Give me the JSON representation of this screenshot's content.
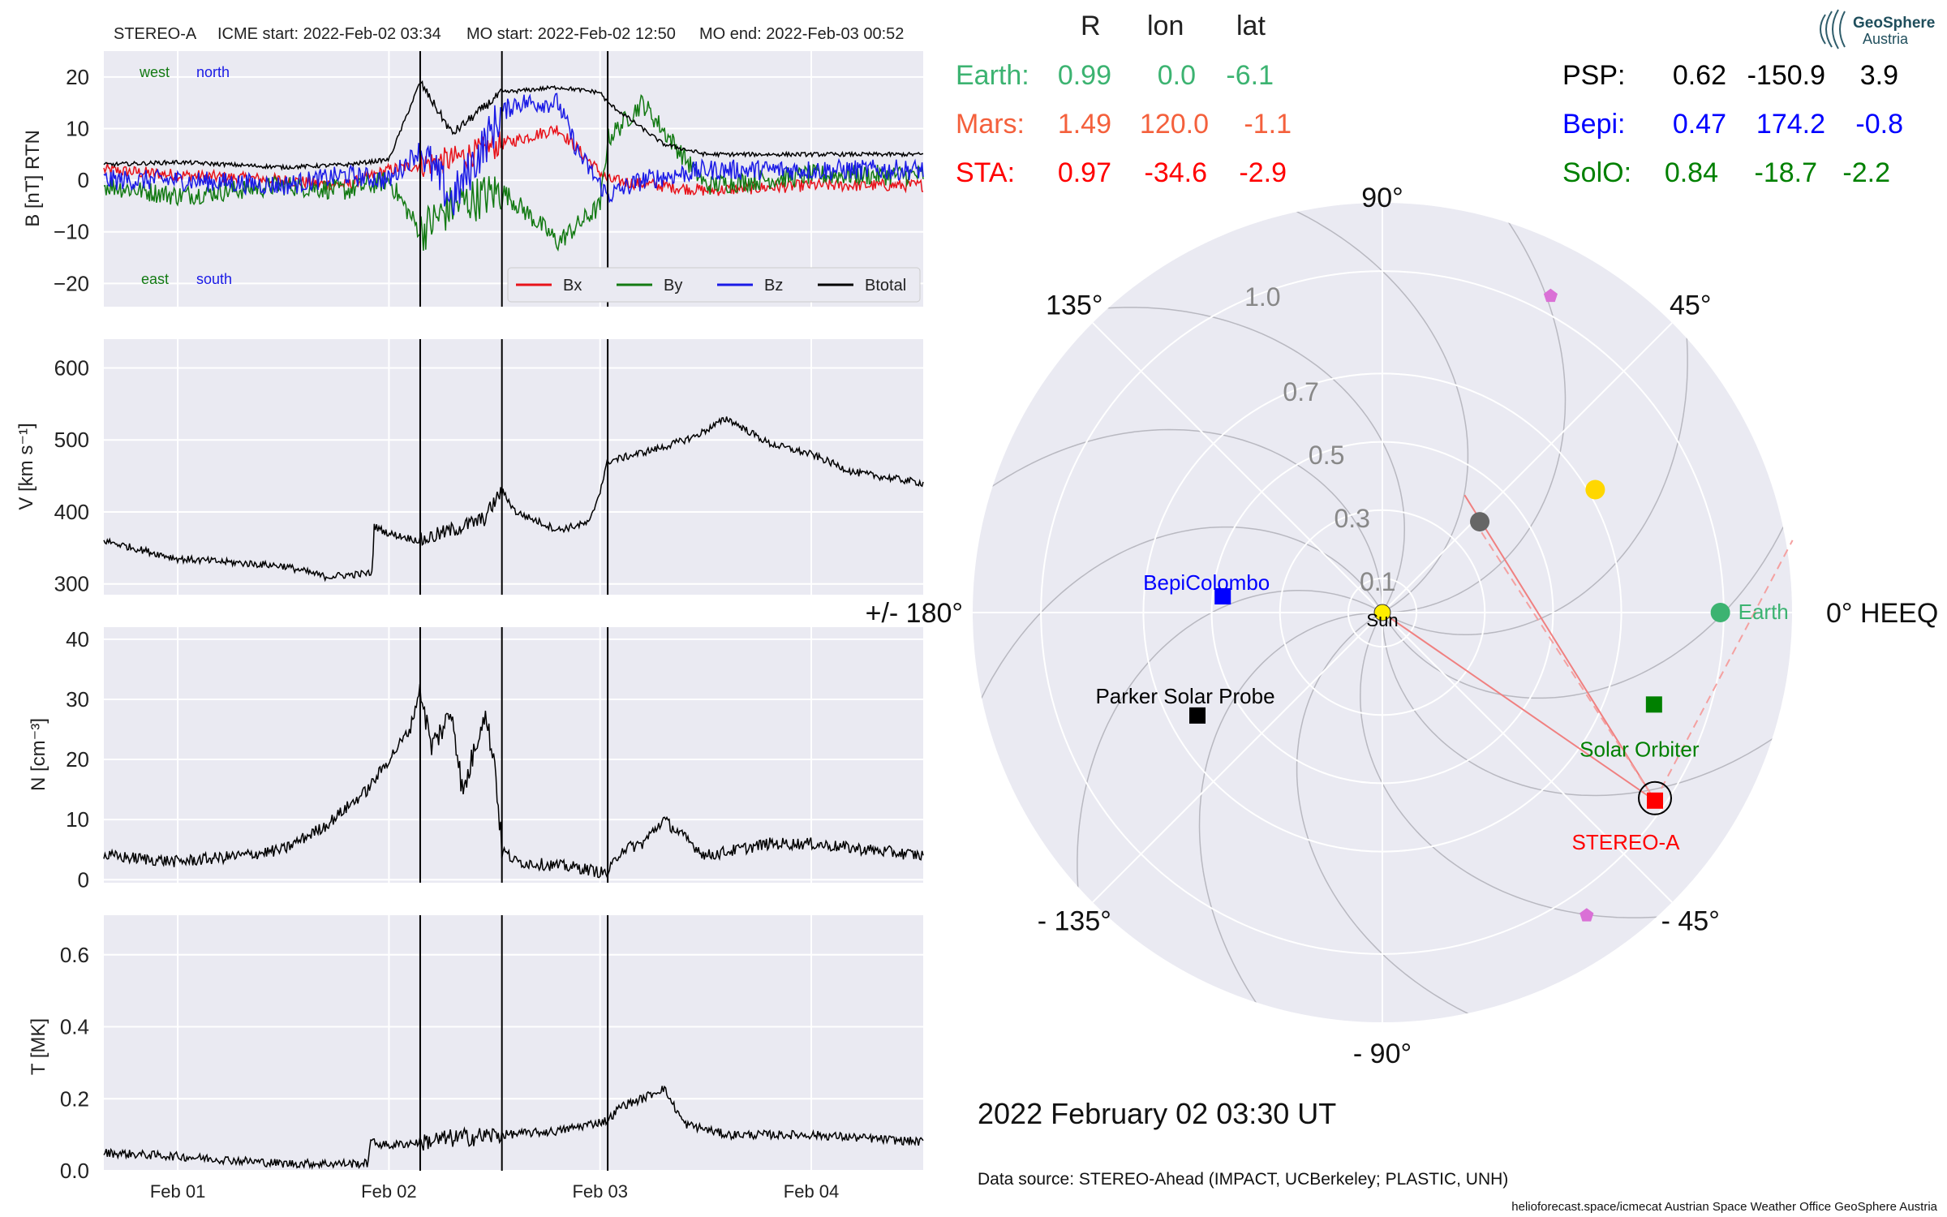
{
  "header": {
    "spacecraft": "STEREO-A",
    "icme_start": "ICME start: 2022-Feb-02 03:34",
    "mo_start": "MO start: 2022-Feb-02 12:50",
    "mo_end": "MO end: 2022-Feb-03 00:52"
  },
  "logo": {
    "name": "GeoSphere",
    "sub": "Austria",
    "icon": "geosphere-logo-icon"
  },
  "colors": {
    "bx": "#e8121a",
    "by": "#137a13",
    "bz": "#1a1ae6",
    "btotal": "#000000",
    "earth": "#3cb371",
    "mars": "#f4603c",
    "sta": "#ff0000",
    "psp": "#000000",
    "bepi": "#0000ff",
    "solo": "#008000",
    "panel_bg": "#eaeaf2",
    "sun": "#ffee00",
    "venus": "#ffd700",
    "mercury": "#666666",
    "pentagon": "#da70d6"
  },
  "time_axis": {
    "start_day": -0.35,
    "end_day": 3.53,
    "ticks": [
      {
        "day": 0,
        "label": "Feb 01"
      },
      {
        "day": 1,
        "label": "Feb 02"
      },
      {
        "day": 2,
        "label": "Feb 03"
      },
      {
        "day": 3,
        "label": "Feb 04"
      }
    ],
    "event_lines_day": [
      1.148,
      1.535,
      2.036
    ]
  },
  "chart_data": [
    {
      "type": "line",
      "id": "magnetic-field",
      "ylabel": "B [nT] RTN",
      "ylim": [
        -24.5,
        25
      ],
      "yticks": [
        20,
        10,
        0,
        -10,
        -20
      ],
      "ytick_labels": [
        "20",
        "10",
        "0",
        "−10",
        "−20"
      ],
      "annotations": {
        "west": "west",
        "north": "north",
        "east": "east",
        "south": "south"
      },
      "legend": {
        "placement": "lower-right",
        "entries": [
          "Bx",
          "By",
          "Bz",
          "Btotal"
        ]
      },
      "series": [
        {
          "name": "Bx",
          "color": "#e8121a",
          "noise": 1.2,
          "x": [
            -0.35,
            0.0,
            0.5,
            0.8,
            1.0,
            1.148,
            1.3,
            1.535,
            1.8,
            2.036,
            2.5,
            3.0,
            3.53
          ],
          "y": [
            2,
            1,
            0,
            -1,
            2,
            3,
            4,
            7,
            10,
            0,
            -2,
            -1,
            -1
          ]
        },
        {
          "name": "By",
          "color": "#137a13",
          "noise": 2.0,
          "x": [
            -0.35,
            0.0,
            0.5,
            0.8,
            1.0,
            1.148,
            1.3,
            1.535,
            1.7,
            1.8,
            2.0,
            2.036,
            2.2,
            2.5,
            3.0,
            3.53
          ],
          "y": [
            -1,
            -3,
            -1,
            -2,
            0,
            -10,
            -5,
            -2,
            -8,
            -12,
            -5,
            8,
            15,
            -1,
            1,
            1
          ]
        },
        {
          "name": "Bz",
          "color": "#1a1ae6",
          "noise": 2.0,
          "x": [
            -0.35,
            0.0,
            0.5,
            0.8,
            1.0,
            1.148,
            1.3,
            1.535,
            1.6,
            1.8,
            1.9,
            2.036,
            2.2,
            2.5,
            3.0,
            3.53
          ],
          "y": [
            0,
            0,
            -1,
            1,
            0,
            6,
            -4,
            13,
            15,
            15,
            5,
            -3,
            0,
            2,
            2,
            2
          ]
        },
        {
          "name": "Btotal",
          "color": "#000000",
          "noise": 0.4,
          "x": [
            -0.35,
            0.0,
            0.5,
            0.8,
            1.0,
            1.148,
            1.3,
            1.535,
            1.8,
            2.0,
            2.036,
            2.3,
            2.5,
            3.0,
            3.53
          ],
          "y": [
            3,
            3.5,
            2.5,
            3,
            4,
            19,
            9,
            17,
            18,
            17,
            15,
            7,
            5,
            5,
            5
          ]
        }
      ]
    },
    {
      "type": "line",
      "id": "speed",
      "ylabel": "V [km s⁻¹]",
      "ylim": [
        285,
        640
      ],
      "yticks": [
        600,
        500,
        400,
        300
      ],
      "ytick_labels": [
        "600",
        "500",
        "400",
        "300"
      ],
      "series": [
        {
          "name": "V",
          "color": "#000000",
          "noise": 5,
          "x": [
            -0.35,
            0.0,
            0.5,
            0.7,
            0.92,
            0.93,
            1.0,
            1.148,
            1.3,
            1.45,
            1.535,
            1.6,
            1.8,
            1.95,
            2.0,
            2.036,
            2.3,
            2.45,
            2.6,
            2.8,
            3.0,
            3.2,
            3.53
          ],
          "y": [
            360,
            335,
            325,
            310,
            315,
            380,
            370,
            360,
            375,
            390,
            430,
            400,
            375,
            385,
            430,
            470,
            490,
            505,
            530,
            495,
            480,
            455,
            440
          ]
        }
      ]
    },
    {
      "type": "line",
      "id": "density",
      "ylabel": "N [cm⁻³]",
      "ylim": [
        -0.5,
        42
      ],
      "yticks": [
        40,
        30,
        20,
        10,
        0
      ],
      "ytick_labels": [
        "40",
        "30",
        "20",
        "10",
        "0"
      ],
      "series": [
        {
          "name": "N",
          "color": "#000000",
          "noise": 1.0,
          "x": [
            -0.35,
            0.0,
            0.3,
            0.5,
            0.7,
            0.9,
            1.0,
            1.1,
            1.148,
            1.2,
            1.3,
            1.35,
            1.45,
            1.5,
            1.535,
            1.6,
            1.9,
            2.036,
            2.1,
            2.2,
            2.3,
            2.5,
            2.8,
            3.0,
            3.53
          ],
          "y": [
            4,
            3,
            4,
            5,
            9,
            15,
            20,
            25,
            32,
            22,
            28,
            14,
            28,
            20,
            5,
            3,
            2,
            1,
            5,
            6,
            10,
            4,
            6,
            6,
            4
          ]
        }
      ]
    },
    {
      "type": "line",
      "id": "temperature",
      "ylabel": "T [MK]",
      "ylim": [
        0,
        0.71
      ],
      "yticks": [
        0.6,
        0.4,
        0.2,
        0.0
      ],
      "ytick_labels": [
        "0.6",
        "0.4",
        "0.2",
        "0.0"
      ],
      "series": [
        {
          "name": "T",
          "color": "#000000",
          "noise": 0.012,
          "x": [
            -0.35,
            0.0,
            0.5,
            0.9,
            0.91,
            1.0,
            1.148,
            1.3,
            1.535,
            1.8,
            2.036,
            2.1,
            2.2,
            2.3,
            2.4,
            2.6,
            3.0,
            3.53
          ],
          "y": [
            0.05,
            0.04,
            0.02,
            0.02,
            0.08,
            0.07,
            0.08,
            0.09,
            0.1,
            0.11,
            0.14,
            0.18,
            0.2,
            0.23,
            0.13,
            0.1,
            0.1,
            0.08
          ]
        }
      ]
    },
    {
      "type": "scatter",
      "id": "orbit-polar",
      "rlim": [
        0,
        1.2
      ],
      "r_ticks": [
        0.1,
        0.3,
        0.5,
        0.7,
        1.0
      ],
      "r_tick_labels": [
        "0.1",
        "0.3",
        "0.5",
        "0.7",
        "1.0"
      ],
      "angle_labels": [
        {
          "deg": 0,
          "label": "0° HEEQ"
        },
        {
          "deg": 45,
          "label": "45°"
        },
        {
          "deg": 90,
          "label": "90°"
        },
        {
          "deg": 135,
          "label": "135°"
        },
        {
          "deg": 180,
          "label": "+/- 180°"
        },
        {
          "deg": -135,
          "label": "- 135°"
        },
        {
          "deg": -90,
          "label": "- 90°"
        },
        {
          "deg": -45,
          "label": "- 45°"
        }
      ],
      "sun_label": "Sun",
      "bodies": [
        {
          "key": "earth",
          "label": "Earth",
          "marker": "circle",
          "color": "#3cb371",
          "r": 0.99,
          "lon": 0.0
        },
        {
          "key": "sta",
          "label": "STEREO-A",
          "marker": "square-ring",
          "color": "#ff0000",
          "r": 0.97,
          "lon": -34.6
        },
        {
          "key": "solo",
          "label": "Solar Orbiter",
          "marker": "square",
          "color": "#008000",
          "r": 0.84,
          "lon": -18.7
        },
        {
          "key": "bepi",
          "label": "BepiColombo",
          "marker": "square",
          "color": "#0000ff",
          "r": 0.47,
          "lon": 174.2
        },
        {
          "key": "psp",
          "label": "Parker Solar Probe",
          "marker": "square",
          "color": "#000000",
          "r": 0.62,
          "lon": -150.9
        },
        {
          "key": "venus",
          "label": "",
          "marker": "circle",
          "color": "#ffd700",
          "r": 0.72,
          "lon": 30
        },
        {
          "key": "mercury",
          "label": "",
          "marker": "circle",
          "color": "#666666",
          "r": 0.39,
          "lon": 43
        },
        {
          "key": "pent1",
          "label": "",
          "marker": "pentagon",
          "color": "#da70d6",
          "r": 1.05,
          "lon": 62
        },
        {
          "key": "pent2",
          "label": "",
          "marker": "pentagon",
          "color": "#da70d6",
          "r": 1.07,
          "lon": -56
        }
      ]
    }
  ],
  "positions_table": {
    "headers": [
      "R",
      "lon",
      "lat"
    ],
    "left": [
      {
        "name": "Earth:",
        "R": "0.99",
        "lon": "0.0",
        "lat": "-6.1",
        "color": "#3cb371"
      },
      {
        "name": "Mars:",
        "R": "1.49",
        "lon": "120.0",
        "lat": "-1.1",
        "color": "#f4603c"
      },
      {
        "name": "STA:",
        "R": "0.97",
        "lon": "-34.6",
        "lat": "-2.9",
        "color": "#ff0000"
      }
    ],
    "right": [
      {
        "name": "PSP:",
        "R": "0.62",
        "lon": "-150.9",
        "lat": "3.9",
        "color": "#000000"
      },
      {
        "name": "Bepi:",
        "R": "0.47",
        "lon": "174.2",
        "lat": "-0.8",
        "color": "#0000ff"
      },
      {
        "name": "SolO:",
        "R": "0.84",
        "lon": "-18.7",
        "lat": "-2.2",
        "color": "#008000"
      }
    ]
  },
  "footer": {
    "datetime": "2022 February 02  03:30 UT",
    "data_source": "Data source: STEREO-Ahead (IMPACT, UCBerkeley; PLASTIC, UNH)",
    "credits": "helioforecast.space/icmecat   Austrian Space Weather Office   GeoSphere Austria"
  }
}
